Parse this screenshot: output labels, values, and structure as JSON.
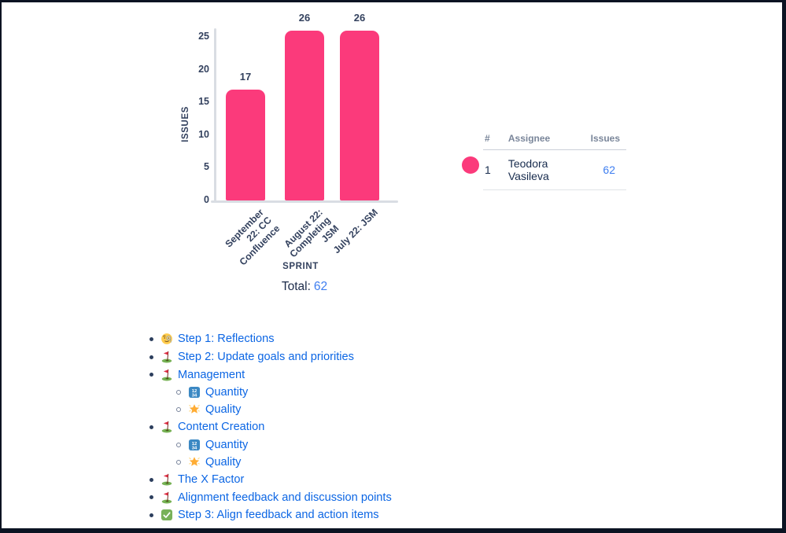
{
  "chart_data": {
    "type": "bar",
    "categories": [
      "September 22: CC Confluence",
      "August 22: Completing JSM",
      "July 22: JSM"
    ],
    "values": [
      17,
      26,
      26
    ],
    "title": "",
    "xlabel": "SPRINT",
    "ylabel": "ISSUES",
    "ylim": [
      0,
      26
    ],
    "yticks": [
      0,
      5,
      10,
      15,
      20,
      25
    ],
    "grid": false,
    "bar_color": "#FB3A7B",
    "legend_position": "right"
  },
  "total": {
    "label": "Total:",
    "value": "62"
  },
  "legend": {
    "headers": [
      "#",
      "Assignee",
      "Issues"
    ],
    "rows": [
      {
        "num": "1",
        "assignee": "Teodora Vasileva",
        "issues": "62",
        "color": "#FB3A7B"
      }
    ]
  },
  "list": {
    "items": [
      {
        "icon": "face-with-monocle",
        "label": "Step 1: Reflections",
        "level": 1
      },
      {
        "icon": "golf-flag",
        "label": "Step 2: Update goals and priorities",
        "level": 1
      },
      {
        "icon": "golf-flag",
        "label": "Management",
        "level": 1
      },
      {
        "icon": "input-numbers",
        "label": "Quantity",
        "level": 2
      },
      {
        "icon": "glowing-star",
        "label": "Quality",
        "level": 2
      },
      {
        "icon": "golf-flag",
        "label": "Content Creation",
        "level": 1
      },
      {
        "icon": "input-numbers",
        "label": "Quantity",
        "level": 2
      },
      {
        "icon": "glowing-star",
        "label": "Quality",
        "level": 2
      },
      {
        "icon": "golf-flag",
        "label": "The X Factor",
        "level": 1
      },
      {
        "icon": "golf-flag",
        "label": "Alignment feedback and discussion points",
        "level": 1
      },
      {
        "icon": "check-mark",
        "label": "Step 3: Align feedback and action items",
        "level": 1
      }
    ]
  },
  "colors": {
    "bar_pink": "#FB3A7B",
    "link_blue": "#0C66E4",
    "value_blue": "#3E7EF0",
    "chart_text": "#33415E",
    "table_header_gray": "#7A869A",
    "table_text": "#172B4D",
    "frame_dark": "#0B1322"
  }
}
